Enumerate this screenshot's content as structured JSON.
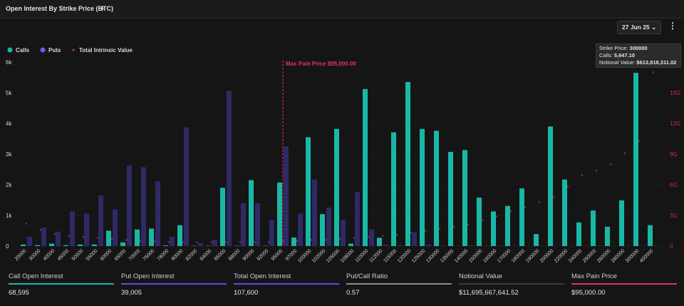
{
  "header": {
    "title": "Open Interest By Strike Price (BTC)",
    "expiry": "27 Jun 25"
  },
  "chart_data": {
    "type": "bar",
    "legend": [
      "Calls",
      "Puts",
      "Total Intrinsic Value"
    ],
    "categories": [
      20000,
      30000,
      40000,
      45000,
      50000,
      55000,
      60000,
      65000,
      70000,
      75000,
      78000,
      80000,
      82000,
      84000,
      85000,
      88000,
      90000,
      92000,
      95000,
      97000,
      100000,
      102000,
      105000,
      108000,
      110000,
      112000,
      115000,
      120000,
      125000,
      130000,
      135000,
      140000,
      150000,
      160000,
      170000,
      180000,
      190000,
      200000,
      220000,
      240000,
      250000,
      260000,
      280000,
      300000,
      400000
    ],
    "series": [
      {
        "name": "Calls",
        "color": "#19b8a6",
        "values": [
          50,
          30,
          80,
          30,
          50,
          50,
          500,
          120,
          540,
          570,
          20,
          680,
          10,
          10,
          1900,
          10,
          2150,
          10,
          2070,
          280,
          3550,
          1040,
          3820,
          80,
          5120,
          270,
          3710,
          5350,
          3820,
          3760,
          3070,
          3130,
          1580,
          1130,
          1310,
          1880,
          390,
          3900,
          2170,
          770,
          1160,
          630,
          1490,
          5647.1,
          680
        ]
      },
      {
        "name": "Puts",
        "color": "#2e2a66",
        "values": [
          300,
          600,
          470,
          1130,
          1060,
          1650,
          1200,
          2630,
          2570,
          2110,
          300,
          3870,
          100,
          200,
          5060,
          1400,
          1400,
          850,
          3250,
          1060,
          2170,
          1260,
          860,
          1760,
          540,
          50,
          30,
          450,
          50,
          20,
          10,
          20,
          10,
          10,
          5,
          5,
          5,
          5,
          5,
          5,
          5,
          5,
          5,
          5,
          5
        ]
      },
      {
        "name": "Total Intrinsic Value",
        "color": "#d02a5a",
        "axis": "y2",
        "values": [
          2200000000,
          1600000000,
          1200000000,
          1000000000,
          900000000,
          800000000,
          700000000,
          600000000,
          500000000,
          450000000,
          400000000,
          400000000,
          400000000,
          400000000,
          400000000,
          400000000,
          400000000,
          400000000,
          500000000,
          500000000,
          600000000,
          600000000,
          700000000,
          800000000,
          900000000,
          1000000000,
          1100000000,
          1300000000,
          1500000000,
          1700000000,
          1900000000,
          2100000000,
          2500000000,
          2900000000,
          3400000000,
          3800000000,
          4300000000,
          4800000000,
          5800000000,
          6900000000,
          7400000000,
          8000000000,
          9100000000,
          10300000000,
          17000000000
        ]
      }
    ],
    "ylim": [
      0,
      6000
    ],
    "yticks": [
      0,
      {
        "value": 1000,
        "label": "1k"
      },
      {
        "value": 2000,
        "label": "2k"
      },
      {
        "value": 3000,
        "label": "3k"
      },
      {
        "value": 4000,
        "label": "4k"
      },
      {
        "value": 5000,
        "label": "5k"
      },
      {
        "value": 6000,
        "label": "6k"
      }
    ],
    "y2lim": [
      0,
      18000000000
    ],
    "y2ticks": [
      0,
      {
        "value": 3000000000,
        "label": "3G"
      },
      {
        "value": 6000000000,
        "label": "6G"
      },
      {
        "value": 9000000000,
        "label": "9G"
      },
      {
        "value": 12000000000,
        "label": "12G"
      },
      {
        "value": 15000000000,
        "label": "15G"
      }
    ],
    "max_pain": {
      "label": "Max Pain Price $95,000.00",
      "strike": 95000
    },
    "tooltip": {
      "strike_label": "Strike Price:",
      "strike": 300000,
      "calls_label": "Calls:",
      "calls": "5,647.10",
      "notional_label": "Notional Value:",
      "notional": "$613,818,311.02"
    }
  },
  "stats": [
    {
      "label": "Call Open Interest",
      "value": "68,595",
      "color": "#19b8a6"
    },
    {
      "label": "Put Open Interest",
      "value": "39,005",
      "color": "#5b4fe0"
    },
    {
      "label": "Total Open Interest",
      "value": "107,600",
      "color": "#5b4fe0"
    },
    {
      "label": "Put/Call Ratio",
      "value": "0.57",
      "color": "#8a8a8a"
    },
    {
      "label": "Notional Value",
      "value": "$11,695,667,641.52",
      "color": "#3a3a3a"
    },
    {
      "label": "Max Pain Price",
      "value": "$95,000.00",
      "color": "#e0335f"
    }
  ]
}
